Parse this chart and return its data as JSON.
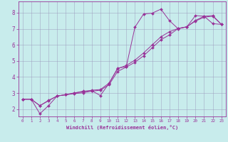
{
  "bg_color": "#c8ecec",
  "line_color": "#993399",
  "grid_color": "#9999bb",
  "xlim": [
    -0.5,
    23.5
  ],
  "ylim": [
    1.55,
    8.7
  ],
  "xticks": [
    0,
    1,
    2,
    3,
    4,
    5,
    6,
    7,
    8,
    9,
    10,
    11,
    12,
    13,
    14,
    15,
    16,
    17,
    18,
    19,
    20,
    21,
    22,
    23
  ],
  "yticks": [
    2,
    3,
    4,
    5,
    6,
    7,
    8
  ],
  "xlabel": "Windchill (Refroidissement éolien,°C)",
  "line1_x": [
    0,
    1,
    2,
    3,
    4,
    5,
    6,
    7,
    8,
    9,
    10,
    11,
    12,
    13,
    14,
    15,
    16,
    17,
    18,
    19,
    20,
    21,
    22,
    23
  ],
  "line1_y": [
    2.62,
    2.62,
    1.72,
    2.22,
    2.82,
    2.9,
    3.0,
    3.12,
    3.15,
    2.85,
    3.6,
    4.55,
    4.65,
    7.1,
    7.92,
    7.97,
    8.22,
    7.5,
    7.0,
    7.12,
    7.82,
    7.78,
    7.32,
    7.27
  ],
  "line2_x": [
    0,
    1,
    2,
    3,
    4,
    5,
    6,
    7,
    8,
    9,
    10,
    11,
    12,
    13,
    14,
    15,
    16,
    17,
    18,
    19,
    20,
    21,
    22,
    23
  ],
  "line2_y": [
    2.62,
    2.62,
    2.22,
    2.55,
    2.82,
    2.9,
    3.02,
    3.08,
    3.18,
    3.22,
    3.62,
    4.52,
    4.72,
    5.05,
    5.5,
    6.0,
    6.5,
    6.82,
    7.02,
    7.12,
    7.52,
    7.78,
    7.82,
    7.27
  ],
  "line3_x": [
    0,
    1,
    2,
    3,
    4,
    5,
    6,
    7,
    8,
    9,
    10,
    11,
    12,
    13,
    14,
    15,
    16,
    17,
    18,
    19,
    20,
    21,
    22,
    23
  ],
  "line3_y": [
    2.62,
    2.62,
    2.22,
    2.52,
    2.82,
    2.9,
    2.97,
    3.02,
    3.12,
    3.18,
    3.52,
    4.35,
    4.62,
    4.92,
    5.32,
    5.82,
    6.32,
    6.62,
    7.02,
    7.12,
    7.48,
    7.72,
    7.78,
    7.27
  ]
}
